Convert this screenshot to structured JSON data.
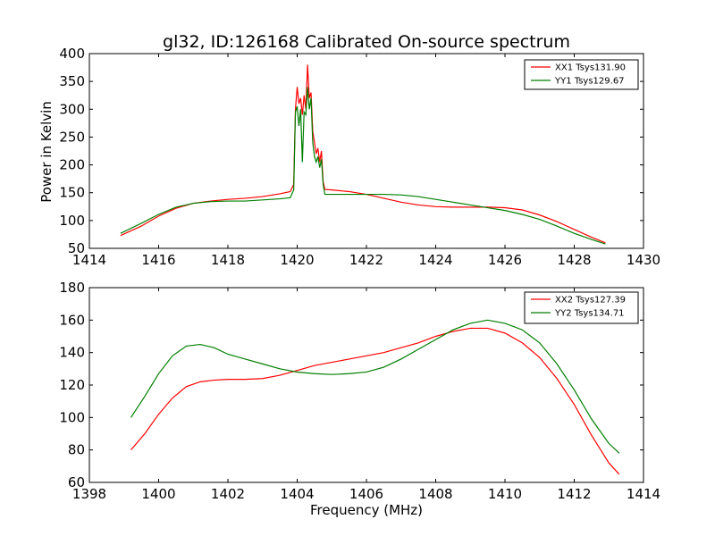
{
  "title": "gl32, ID:126168 Calibrated On-source spectrum",
  "colors": {
    "red": "#ff0000",
    "green": "#007f00"
  },
  "chart_data": [
    {
      "type": "line",
      "title": "gl32, ID:126168 Calibrated On-source spectrum",
      "xlabel": "",
      "ylabel": "Power in Kelvin",
      "xlim": [
        1414,
        1430
      ],
      "ylim": [
        50,
        400
      ],
      "xticks": [
        "1414",
        "1416",
        "1418",
        "1420",
        "1422",
        "1424",
        "1426",
        "1428",
        "1430"
      ],
      "yticks": [
        "50",
        "100",
        "150",
        "200",
        "250",
        "300",
        "350",
        "400"
      ],
      "grid": false,
      "legend_position": "top-right",
      "series": [
        {
          "name": "XX1 Tsys131.90",
          "color": "#ff0000",
          "points": [
            [
              1414.9,
              73
            ],
            [
              1415.5,
              90
            ],
            [
              1416.0,
              108
            ],
            [
              1416.5,
              122
            ],
            [
              1417.0,
              131
            ],
            [
              1417.5,
              135
            ],
            [
              1418.0,
              138
            ],
            [
              1418.5,
              140
            ],
            [
              1419.0,
              143
            ],
            [
              1419.5,
              148
            ],
            [
              1419.8,
              152
            ],
            [
              1419.9,
              165
            ],
            [
              1419.95,
              300
            ],
            [
              1420.0,
              340
            ],
            [
              1420.05,
              310
            ],
            [
              1420.1,
              320
            ],
            [
              1420.15,
              290
            ],
            [
              1420.2,
              325
            ],
            [
              1420.25,
              300
            ],
            [
              1420.3,
              380
            ],
            [
              1420.35,
              320
            ],
            [
              1420.4,
              330
            ],
            [
              1420.45,
              260
            ],
            [
              1420.5,
              240
            ],
            [
              1420.55,
              220
            ],
            [
              1420.6,
              230
            ],
            [
              1420.65,
              205
            ],
            [
              1420.7,
              225
            ],
            [
              1420.75,
              170
            ],
            [
              1420.8,
              156
            ],
            [
              1421.0,
              155
            ],
            [
              1421.5,
              152
            ],
            [
              1422.0,
              147
            ],
            [
              1422.5,
              140
            ],
            [
              1423.0,
              133
            ],
            [
              1423.5,
              128
            ],
            [
              1424.0,
              125
            ],
            [
              1424.5,
              124
            ],
            [
              1425.0,
              124
            ],
            [
              1425.5,
              124
            ],
            [
              1426.0,
              123
            ],
            [
              1426.5,
              119
            ],
            [
              1427.0,
              110
            ],
            [
              1427.5,
              98
            ],
            [
              1428.0,
              84
            ],
            [
              1428.5,
              70
            ],
            [
              1428.9,
              60
            ]
          ]
        },
        {
          "name": "YY1 Tsys129.67",
          "color": "#007f00",
          "points": [
            [
              1414.9,
              77
            ],
            [
              1415.5,
              95
            ],
            [
              1416.0,
              111
            ],
            [
              1416.5,
              124
            ],
            [
              1417.0,
              131
            ],
            [
              1417.5,
              134
            ],
            [
              1418.0,
              135
            ],
            [
              1418.5,
              135
            ],
            [
              1419.0,
              137
            ],
            [
              1419.5,
              139
            ],
            [
              1419.8,
              141
            ],
            [
              1419.9,
              155
            ],
            [
              1419.95,
              295
            ],
            [
              1420.0,
              305
            ],
            [
              1420.05,
              270
            ],
            [
              1420.1,
              300
            ],
            [
              1420.15,
              205
            ],
            [
              1420.2,
              295
            ],
            [
              1420.25,
              290
            ],
            [
              1420.3,
              340
            ],
            [
              1420.35,
              300
            ],
            [
              1420.4,
              320
            ],
            [
              1420.45,
              240
            ],
            [
              1420.5,
              215
            ],
            [
              1420.55,
              205
            ],
            [
              1420.6,
              215
            ],
            [
              1420.65,
              195
            ],
            [
              1420.7,
              210
            ],
            [
              1420.75,
              165
            ],
            [
              1420.8,
              147
            ],
            [
              1421.0,
              147
            ],
            [
              1421.5,
              147
            ],
            [
              1422.0,
              147
            ],
            [
              1422.5,
              147
            ],
            [
              1423.0,
              146
            ],
            [
              1423.5,
              143
            ],
            [
              1424.0,
              138
            ],
            [
              1424.5,
              133
            ],
            [
              1425.0,
              128
            ],
            [
              1425.5,
              123
            ],
            [
              1426.0,
              118
            ],
            [
              1426.5,
              111
            ],
            [
              1427.0,
              102
            ],
            [
              1427.5,
              90
            ],
            [
              1428.0,
              77
            ],
            [
              1428.5,
              66
            ],
            [
              1428.9,
              58
            ]
          ]
        }
      ]
    },
    {
      "type": "line",
      "title": "",
      "xlabel": "Frequency (MHz)",
      "ylabel": "",
      "xlim": [
        1398,
        1414
      ],
      "ylim": [
        60,
        180
      ],
      "xticks": [
        "1398",
        "1400",
        "1402",
        "1404",
        "1406",
        "1408",
        "1410",
        "1412",
        "1414"
      ],
      "yticks": [
        "60",
        "80",
        "100",
        "120",
        "140",
        "160",
        "180"
      ],
      "grid": false,
      "legend_position": "top-right",
      "series": [
        {
          "name": "XX2 Tsys127.39",
          "color": "#ff0000",
          "points": [
            [
              1399.2,
              80
            ],
            [
              1399.6,
              90
            ],
            [
              1400.0,
              102
            ],
            [
              1400.4,
              112
            ],
            [
              1400.8,
              119
            ],
            [
              1401.2,
              122
            ],
            [
              1401.6,
              123
            ],
            [
              1402.0,
              123.5
            ],
            [
              1402.5,
              123.5
            ],
            [
              1403.0,
              124
            ],
            [
              1403.5,
              126
            ],
            [
              1404.0,
              129
            ],
            [
              1404.5,
              132
            ],
            [
              1405.0,
              134
            ],
            [
              1405.5,
              136
            ],
            [
              1406.0,
              138
            ],
            [
              1406.5,
              140
            ],
            [
              1407.0,
              143
            ],
            [
              1407.5,
              146
            ],
            [
              1408.0,
              150
            ],
            [
              1408.5,
              153
            ],
            [
              1409.0,
              155
            ],
            [
              1409.5,
              155
            ],
            [
              1410.0,
              152
            ],
            [
              1410.5,
              146
            ],
            [
              1411.0,
              137
            ],
            [
              1411.5,
              124
            ],
            [
              1412.0,
              108
            ],
            [
              1412.5,
              89
            ],
            [
              1413.0,
              72
            ],
            [
              1413.3,
              65
            ]
          ]
        },
        {
          "name": "YY2 Tsys134.71",
          "color": "#007f00",
          "points": [
            [
              1399.2,
              100
            ],
            [
              1399.6,
              113
            ],
            [
              1400.0,
              127
            ],
            [
              1400.4,
              138
            ],
            [
              1400.8,
              144
            ],
            [
              1401.2,
              145
            ],
            [
              1401.6,
              143
            ],
            [
              1402.0,
              139
            ],
            [
              1402.5,
              136
            ],
            [
              1403.0,
              133
            ],
            [
              1403.5,
              130
            ],
            [
              1404.0,
              128
            ],
            [
              1404.5,
              127
            ],
            [
              1405.0,
              126.5
            ],
            [
              1405.5,
              127
            ],
            [
              1406.0,
              128
            ],
            [
              1406.5,
              131
            ],
            [
              1407.0,
              136
            ],
            [
              1407.5,
              142
            ],
            [
              1408.0,
              148
            ],
            [
              1408.5,
              154
            ],
            [
              1409.0,
              158
            ],
            [
              1409.5,
              160
            ],
            [
              1410.0,
              158
            ],
            [
              1410.5,
              154
            ],
            [
              1411.0,
              146
            ],
            [
              1411.5,
              133
            ],
            [
              1412.0,
              117
            ],
            [
              1412.5,
              99
            ],
            [
              1413.0,
              84
            ],
            [
              1413.3,
              78
            ]
          ]
        }
      ]
    }
  ]
}
